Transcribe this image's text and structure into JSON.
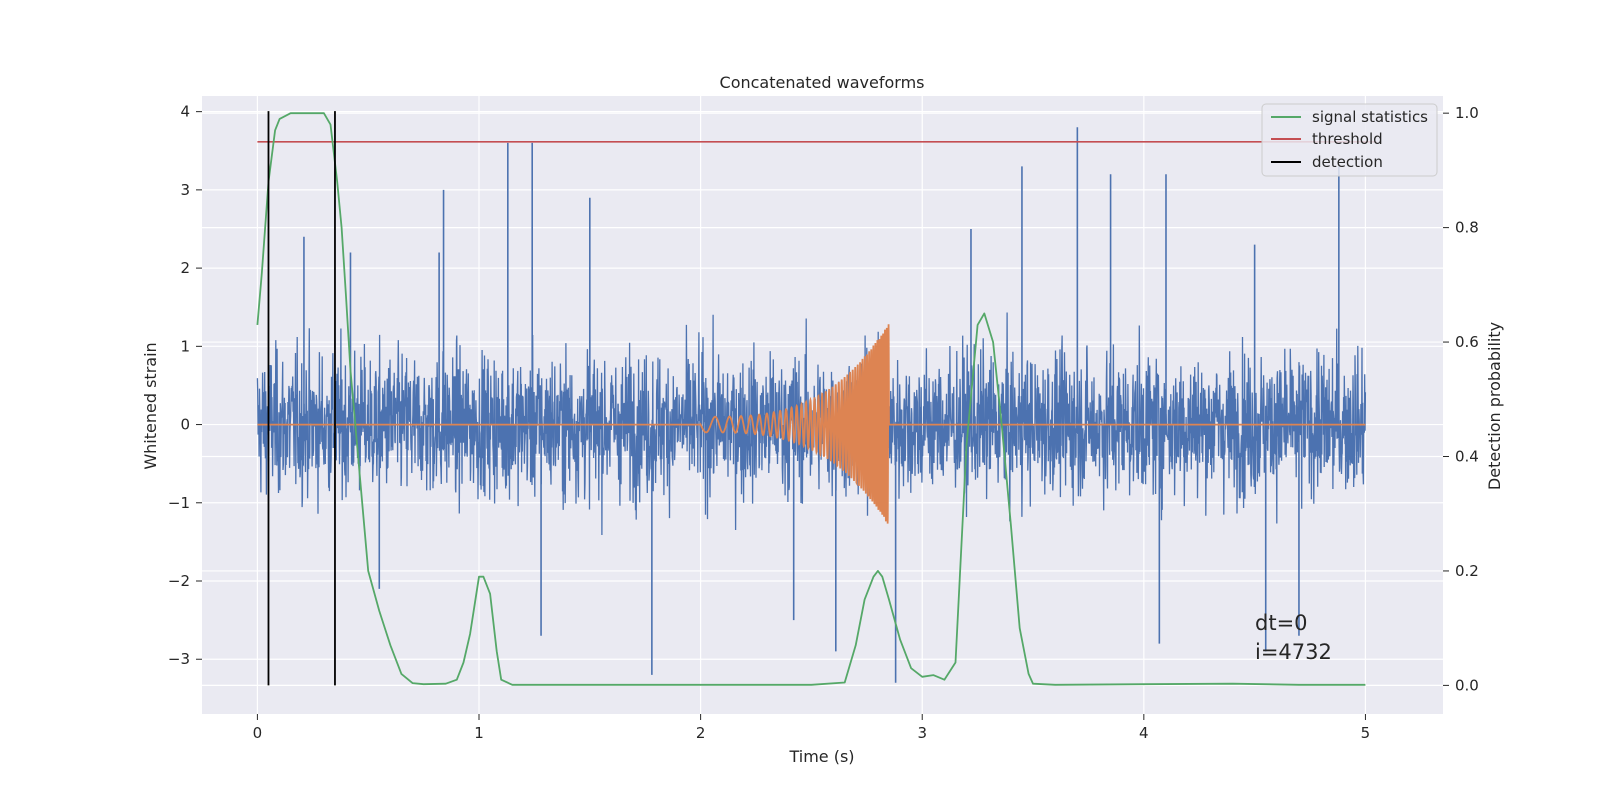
{
  "chart_data": {
    "type": "line",
    "title": "Concatenated waveforms",
    "xlabel": "Time (s)",
    "ylabel": "Whitened strain",
    "y2label": "Detection probability",
    "xlim": [
      -0.25,
      5.35
    ],
    "ylim": [
      -3.7,
      4.2
    ],
    "y2lim": [
      -0.05,
      1.03
    ],
    "xticks": [
      0,
      1,
      2,
      3,
      4,
      5
    ],
    "yticks": [
      -3,
      -2,
      -1,
      0,
      1,
      2,
      3,
      4
    ],
    "y2ticks": [
      0.0,
      0.2,
      0.4,
      0.6,
      0.8,
      1.0
    ],
    "y2tick_labels": [
      "0.0",
      "0.2",
      "0.4",
      "0.6",
      "0.8",
      "1.0"
    ],
    "grid": true,
    "legend_position": "top-right",
    "legend": [
      {
        "label": "signal statistics",
        "color": "#55a868"
      },
      {
        "label": "threshold",
        "color": "#c44e52"
      },
      {
        "label": "detection",
        "color": "#000000"
      }
    ],
    "annotations": [
      "dt=0",
      "i=4732"
    ],
    "series": [
      {
        "style": "noise",
        "axis": "left",
        "color": "#4c72b0",
        "x_range": [
          0,
          5
        ],
        "typical_range": [
          -1.5,
          1.5
        ],
        "extremes": [
          {
            "x": 0.21,
            "y": 2.4
          },
          {
            "x": 0.42,
            "y": 2.2
          },
          {
            "x": 0.55,
            "y": -2.1
          },
          {
            "x": 0.82,
            "y": 2.2
          },
          {
            "x": 0.84,
            "y": 3.0
          },
          {
            "x": 1.13,
            "y": 3.6
          },
          {
            "x": 1.24,
            "y": 3.6
          },
          {
            "x": 1.28,
            "y": -2.7
          },
          {
            "x": 1.5,
            "y": 2.9
          },
          {
            "x": 1.78,
            "y": -3.2
          },
          {
            "x": 2.42,
            "y": -2.5
          },
          {
            "x": 2.61,
            "y": -2.9
          },
          {
            "x": 2.88,
            "y": -3.3
          },
          {
            "x": 3.22,
            "y": 2.5
          },
          {
            "x": 3.45,
            "y": 3.3
          },
          {
            "x": 3.7,
            "y": 3.8
          },
          {
            "x": 3.85,
            "y": 3.2
          },
          {
            "x": 4.07,
            "y": -2.8
          },
          {
            "x": 4.1,
            "y": 3.2
          },
          {
            "x": 4.5,
            "y": 2.3
          },
          {
            "x": 4.55,
            "y": -2.9
          },
          {
            "x": 4.7,
            "y": -2.7
          },
          {
            "x": 4.88,
            "y": 3.3
          }
        ]
      },
      {
        "style": "chirp",
        "axis": "left",
        "color": "#dd8452",
        "x_range": [
          0,
          5
        ],
        "chirp_start": 2.0,
        "chirp_end": 2.85,
        "start_amplitude": 0.1,
        "peak_amplitude": 1.3
      },
      {
        "name": "signal statistics",
        "axis": "right",
        "color": "#55a868",
        "x": [
          0.0,
          0.02,
          0.05,
          0.08,
          0.1,
          0.15,
          0.2,
          0.3,
          0.33,
          0.36,
          0.38,
          0.4,
          0.42,
          0.45,
          0.5,
          0.55,
          0.6,
          0.65,
          0.7,
          0.75,
          0.85,
          0.9,
          0.93,
          0.96,
          1.0,
          1.02,
          1.05,
          1.08,
          1.1,
          1.15,
          1.5,
          2.0,
          2.5,
          2.65,
          2.7,
          2.74,
          2.78,
          2.8,
          2.82,
          2.85,
          2.9,
          2.95,
          3.0,
          3.05,
          3.1,
          3.15,
          3.2,
          3.25,
          3.28,
          3.32,
          3.36,
          3.4,
          3.44,
          3.48,
          3.5,
          3.6,
          4.0,
          4.4,
          4.7,
          5.0
        ],
        "y": [
          0.63,
          0.72,
          0.88,
          0.97,
          0.99,
          1.0,
          1.0,
          1.0,
          0.98,
          0.88,
          0.8,
          0.68,
          0.55,
          0.42,
          0.2,
          0.13,
          0.07,
          0.02,
          0.004,
          0.002,
          0.003,
          0.01,
          0.04,
          0.09,
          0.19,
          0.19,
          0.16,
          0.06,
          0.01,
          0.001,
          0.001,
          0.001,
          0.001,
          0.005,
          0.07,
          0.15,
          0.19,
          0.2,
          0.19,
          0.15,
          0.08,
          0.03,
          0.015,
          0.018,
          0.01,
          0.04,
          0.42,
          0.63,
          0.65,
          0.6,
          0.45,
          0.28,
          0.1,
          0.02,
          0.003,
          0.001,
          0.002,
          0.003,
          0.001,
          0.001
        ]
      },
      {
        "name": "threshold",
        "axis": "right",
        "color": "#c44e52",
        "x": [
          0,
          5.05
        ],
        "y": [
          0.95,
          0.95
        ]
      }
    ],
    "detections": [
      0.05,
      0.35
    ]
  }
}
